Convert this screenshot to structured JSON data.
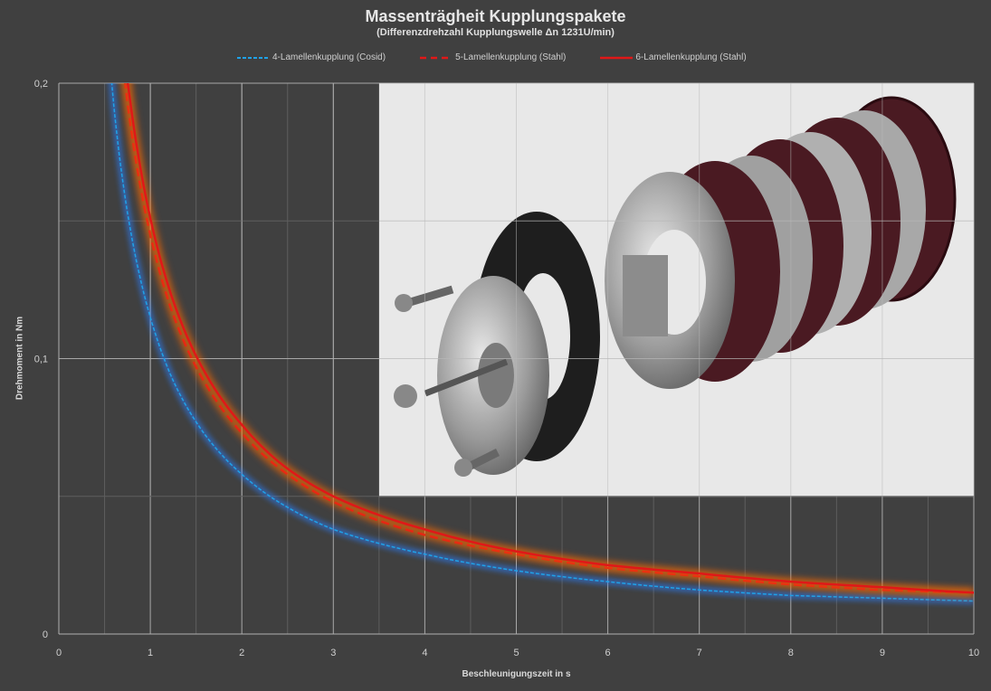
{
  "chart_data": {
    "type": "line",
    "title": "Massenträgheit Kupplungspakete",
    "subtitle": "(Differenzdrehzahl Kupplungswelle  Δn 1231U/min)",
    "xlabel": "Beschleunigungszeit in s",
    "ylabel": "Drehmoment in Nm",
    "xlim": [
      0,
      10
    ],
    "ylim": [
      0,
      0.2
    ],
    "x_ticks": [
      "0",
      "1",
      "2",
      "3",
      "4",
      "5",
      "6",
      "7",
      "8",
      "9",
      "10"
    ],
    "y_ticks": [
      {
        "value": 0,
        "label": "0"
      },
      {
        "value": 0.1,
        "label": "0,1"
      },
      {
        "value": 0.2,
        "label": "0,2"
      }
    ],
    "grid": true,
    "legend_position": "top",
    "series": [
      {
        "name": "4-Lamellenkupplung (Cosid)",
        "style": "dotted",
        "color": "#1fa2e8",
        "x": [
          0.6,
          0.75,
          1,
          1.25,
          1.5,
          2,
          2.5,
          3,
          4,
          5,
          6,
          7,
          8,
          9,
          10
        ],
        "y": [
          0.192,
          0.153,
          0.115,
          0.092,
          0.077,
          0.058,
          0.046,
          0.038,
          0.029,
          0.023,
          0.019,
          0.016,
          0.014,
          0.013,
          0.012
        ]
      },
      {
        "name": "5-Lamellenkupplung (Stahl)",
        "style": "dashed",
        "color": "#e01818",
        "x": [
          0.75,
          1,
          1.25,
          1.5,
          2,
          2.5,
          3,
          4,
          5,
          6,
          7,
          8,
          9,
          10
        ],
        "y": [
          0.193,
          0.145,
          0.116,
          0.097,
          0.073,
          0.058,
          0.048,
          0.036,
          0.029,
          0.024,
          0.021,
          0.018,
          0.016,
          0.015
        ]
      },
      {
        "name": "6-Lamellenkupplung (Stahl)",
        "style": "solid",
        "color": "#e01818",
        "x": [
          0.75,
          1,
          1.25,
          1.5,
          2,
          2.5,
          3,
          4,
          5,
          6,
          7,
          8,
          9,
          10
        ],
        "y": [
          0.201,
          0.151,
          0.121,
          0.101,
          0.076,
          0.06,
          0.05,
          0.038,
          0.03,
          0.025,
          0.022,
          0.019,
          0.017,
          0.015
        ]
      }
    ]
  }
}
